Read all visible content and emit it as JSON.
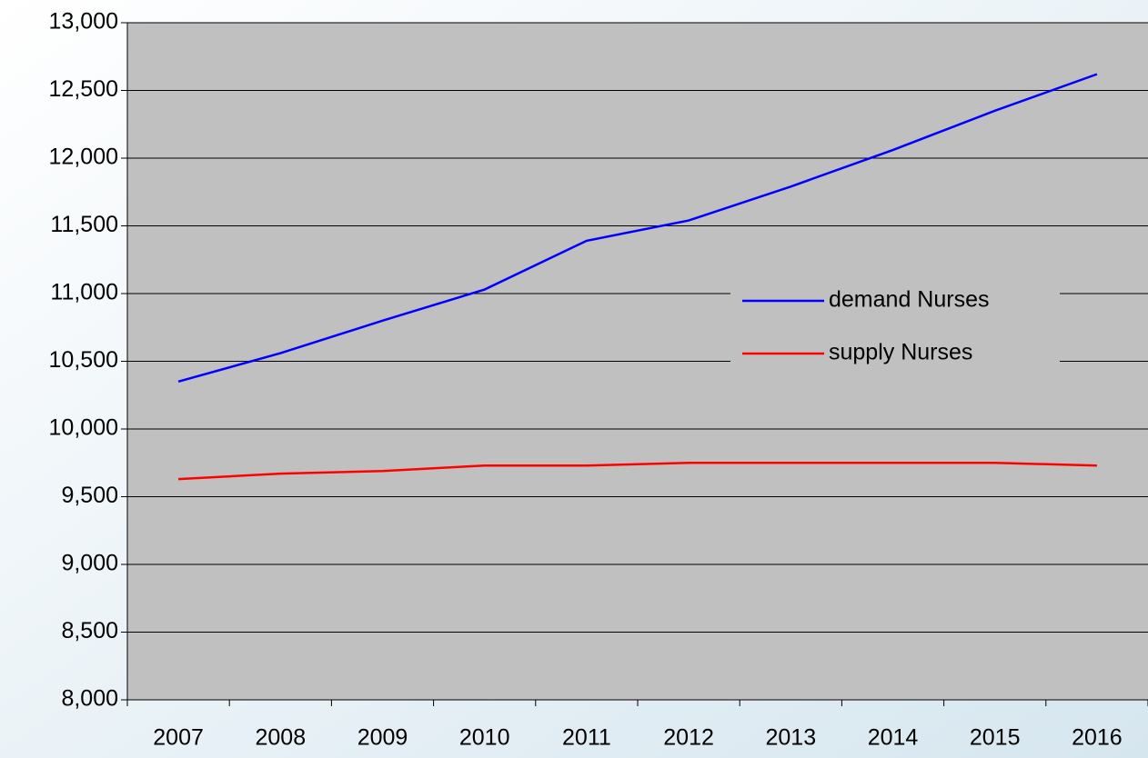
{
  "chart_data": {
    "type": "line",
    "categories": [
      "2007",
      "2008",
      "2009",
      "2010",
      "2011",
      "2012",
      "2013",
      "2014",
      "2015",
      "2016"
    ],
    "series": [
      {
        "name": "demand Nurses",
        "color": "#0000ff",
        "values": [
          10350,
          10560,
          10800,
          11030,
          11390,
          11540,
          11790,
          12060,
          12350,
          12620
        ]
      },
      {
        "name": "supply Nurses",
        "color": "#ff0000",
        "values": [
          9630,
          9670,
          9690,
          9730,
          9730,
          9750,
          9750,
          9750,
          9750,
          9730
        ]
      }
    ],
    "ylim": [
      8000,
      13000
    ],
    "yticks": [
      {
        "value": 8000,
        "label": "8,000"
      },
      {
        "value": 8500,
        "label": "8,500"
      },
      {
        "value": 9000,
        "label": "9,000"
      },
      {
        "value": 9500,
        "label": "9,500"
      },
      {
        "value": 10000,
        "label": "10,000"
      },
      {
        "value": 10500,
        "label": "10,500"
      },
      {
        "value": 11000,
        "label": "11,000"
      },
      {
        "value": 11500,
        "label": "11,500"
      },
      {
        "value": 12000,
        "label": "12,000"
      },
      {
        "value": 12500,
        "label": "12,500"
      },
      {
        "value": 13000,
        "label": "13,000"
      }
    ],
    "grid": true,
    "legend": "right",
    "plot_color": "#c0c0c0"
  }
}
